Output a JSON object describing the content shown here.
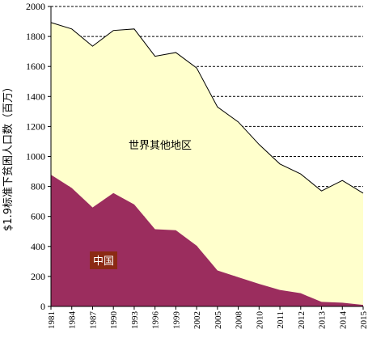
{
  "chart_data": {
    "type": "area",
    "stacked": true,
    "ylabel": "$1.9标准下贫困人口数（百万）",
    "ylim": [
      0,
      2000
    ],
    "yticks": [
      0,
      200,
      400,
      600,
      800,
      1000,
      1200,
      1400,
      1600,
      1800,
      2000
    ],
    "grid": "horizontal-dashed",
    "categories": [
      "1981",
      "1984",
      "1987",
      "1990",
      "1993",
      "1996",
      "1999",
      "2002",
      "2005",
      "2008",
      "2010",
      "2011",
      "2012",
      "2013",
      "2014",
      "2015"
    ],
    "series": [
      {
        "name": "中国",
        "values": [
          878,
          790,
          660,
          756,
          680,
          515,
          508,
          405,
          240,
          195,
          150,
          110,
          88,
          30,
          25,
          10
        ],
        "color": "#9b2d5e"
      },
      {
        "name": "世界其他地区",
        "values": [
          1015,
          1060,
          1075,
          1084,
          1170,
          1153,
          1185,
          1185,
          1090,
          1035,
          930,
          840,
          795,
          740,
          815,
          745
        ],
        "color": "#ffffcc"
      }
    ],
    "totals": [
      1893,
      1850,
      1735,
      1840,
      1850,
      1668,
      1693,
      1590,
      1330,
      1230,
      1080,
      950,
      883,
      770,
      840,
      755
    ],
    "annotations": {
      "rest": "世界其他地区",
      "china": "中国"
    }
  }
}
